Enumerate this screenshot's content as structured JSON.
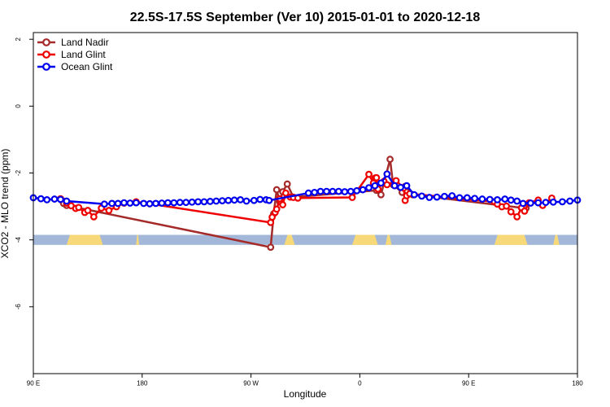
{
  "chart_data": {
    "type": "line",
    "title": "22.5S-17.5S September (Ver 10)   2015-01-01 to 2020-12-18",
    "xlabel": "Longitude",
    "ylabel": "XCO2 - MLO trend (ppm)",
    "xlim": [
      90,
      450
    ],
    "ylim": [
      -8,
      2.2
    ],
    "x_ticks": [
      {
        "value": 90,
        "label": "90 E"
      },
      {
        "value": 162,
        "label": "180"
      },
      {
        "value": 234,
        "label": "90 W"
      },
      {
        "value": 306,
        "label": "0"
      },
      {
        "value": 378,
        "label": "90 E"
      },
      {
        "value": 450,
        "label": "180"
      }
    ],
    "y_ticks": [
      {
        "value": 2,
        "label": "2"
      },
      {
        "value": 0,
        "label": "0"
      },
      {
        "value": -2,
        "label": "-2"
      },
      {
        "value": -4,
        "label": "-4"
      },
      {
        "value": -6,
        "label": "-6"
      }
    ],
    "grid": false,
    "legend": "top-left",
    "land_mask": {
      "y_range": [
        -4.15,
        -3.85
      ],
      "ocean_color": "#a3b8d8",
      "land_color": "#f7d97a",
      "land_segments": [
        [
          112,
          136
        ],
        [
          158,
          160
        ],
        [
          256,
          263
        ],
        [
          301,
          318
        ],
        [
          323,
          327
        ],
        [
          395,
          417
        ],
        [
          434,
          438
        ]
      ]
    },
    "series": [
      {
        "name": "Land Nadir",
        "color": "#a52a2a",
        "x": [
          109,
          110,
          112,
          247,
          249,
          251,
          253,
          255,
          258,
          262,
          317,
          320,
          326,
          328,
          334,
          336,
          341,
          413,
          416
        ],
        "y": [
          -2.82,
          -2.91,
          -2.97,
          -4.22,
          -3.22,
          -2.5,
          -2.86,
          -2.56,
          -2.33,
          -2.72,
          -2.52,
          -2.65,
          -1.59,
          -2.35,
          -2.58,
          -2.4,
          -2.65,
          -3.04,
          -3.05
        ]
      },
      {
        "name": "Land Glint",
        "color": "#ee0000",
        "x": [
          108,
          112,
          115,
          118,
          120,
          124,
          126,
          130,
          135,
          140,
          145,
          150,
          158,
          167,
          247,
          248,
          250,
          251,
          253,
          255,
          257,
          260,
          262,
          265,
          301,
          312,
          315,
          316,
          317,
          318,
          322,
          324,
          330,
          335,
          336,
          337,
          339,
          395,
          397,
          400,
          403,
          406,
          410,
          413,
          415,
          418,
          424,
          427,
          433
        ],
        "y": [
          -2.77,
          -2.9,
          -2.98,
          -3.06,
          -3.03,
          -3.18,
          -3.12,
          -3.31,
          -3.05,
          -3.12,
          -3.01,
          -2.9,
          -2.86,
          -2.92,
          -3.48,
          -3.32,
          -3.18,
          -3.08,
          -2.77,
          -2.95,
          -2.6,
          -2.72,
          -2.73,
          -2.75,
          -2.73,
          -2.04,
          -2.3,
          -2.15,
          -2.14,
          -2.48,
          -2.25,
          -2.35,
          -2.23,
          -2.45,
          -2.82,
          -2.68,
          -2.62,
          -2.86,
          -2.93,
          -3.01,
          -2.99,
          -3.16,
          -3.31,
          -3.04,
          -3.14,
          -2.89,
          -2.81,
          -2.97,
          -2.75
        ]
      },
      {
        "name": "Ocean Glint",
        "color": "#0000ee",
        "x": [
          90,
          95,
          99,
          104,
          108,
          112,
          137,
          142,
          146,
          150,
          154,
          158,
          163,
          167,
          171,
          175,
          179,
          183,
          187,
          191,
          195,
          199,
          203,
          207,
          211,
          215,
          219,
          223,
          227,
          231,
          236,
          240,
          244,
          246,
          272,
          276,
          280,
          284,
          288,
          292,
          296,
          300,
          304,
          308,
          312,
          316,
          320,
          324,
          329,
          333,
          337,
          342,
          347,
          352,
          357,
          362,
          367,
          372,
          377,
          382,
          387,
          392,
          397,
          402,
          406,
          410,
          414,
          419,
          424,
          429,
          434,
          440,
          445,
          450
        ],
        "y": [
          -2.74,
          -2.77,
          -2.8,
          -2.78,
          -2.79,
          -2.84,
          -2.93,
          -2.91,
          -2.91,
          -2.89,
          -2.9,
          -2.89,
          -2.91,
          -2.92,
          -2.91,
          -2.9,
          -2.89,
          -2.89,
          -2.88,
          -2.88,
          -2.87,
          -2.86,
          -2.86,
          -2.85,
          -2.84,
          -2.83,
          -2.82,
          -2.81,
          -2.8,
          -2.84,
          -2.82,
          -2.79,
          -2.8,
          -2.82,
          -2.6,
          -2.58,
          -2.55,
          -2.55,
          -2.55,
          -2.55,
          -2.56,
          -2.55,
          -2.53,
          -2.5,
          -2.44,
          -2.38,
          -2.3,
          -2.03,
          -2.38,
          -2.43,
          -2.38,
          -2.65,
          -2.69,
          -2.73,
          -2.72,
          -2.7,
          -2.68,
          -2.74,
          -2.74,
          -2.76,
          -2.78,
          -2.79,
          -2.8,
          -2.78,
          -2.81,
          -2.84,
          -2.91,
          -2.9,
          -2.89,
          -2.88,
          -2.87,
          -2.86,
          -2.84,
          -2.81
        ]
      }
    ]
  }
}
